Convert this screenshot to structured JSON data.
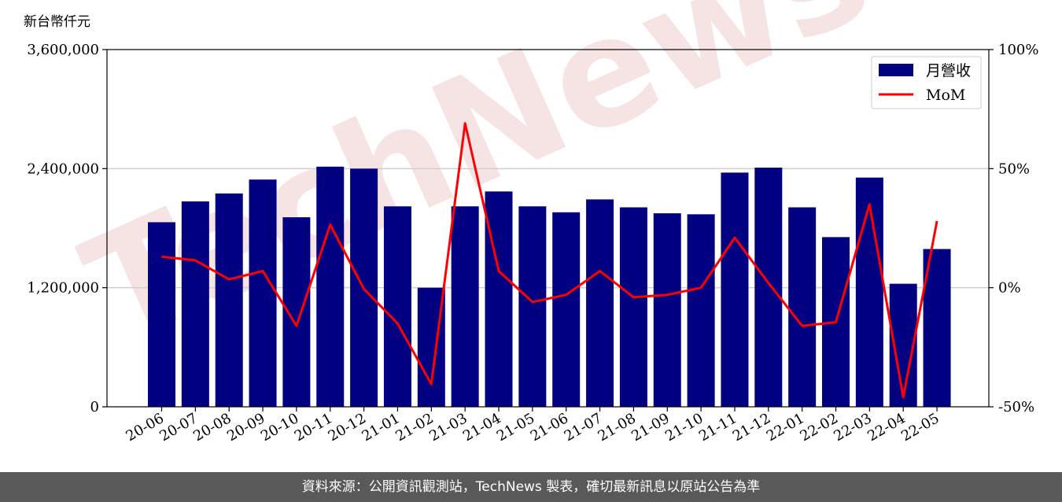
{
  "chart_data": {
    "type": "bar+line",
    "unit_label": "新台幣仟元",
    "categories": [
      "20-06",
      "20-07",
      "20-08",
      "20-09",
      "20-10",
      "20-11",
      "20-12",
      "21-01",
      "21-02",
      "21-03",
      "21-04",
      "21-05",
      "21-06",
      "21-07",
      "21-08",
      "21-09",
      "21-10",
      "21-11",
      "21-12",
      "22-01",
      "22-02",
      "22-03",
      "22-04",
      "22-05"
    ],
    "series": [
      {
        "name": "月營收",
        "type": "bar",
        "axis": "left",
        "color": "#000080",
        "values": [
          1860000,
          2070000,
          2150000,
          2290000,
          1910000,
          2420000,
          2400000,
          2020000,
          1200000,
          2020000,
          2170000,
          2020000,
          1960000,
          2090000,
          2010000,
          1950000,
          1940000,
          2360000,
          2410000,
          2010000,
          1710000,
          2310000,
          1240000,
          1590000
        ]
      },
      {
        "name": "MoM",
        "type": "line",
        "axis": "right",
        "color": "#ff0000",
        "values": [
          13,
          11.5,
          3.5,
          7,
          -16,
          26.5,
          -0.5,
          -15,
          -40.5,
          69,
          7,
          -6,
          -3,
          7,
          -4,
          -3,
          0,
          21,
          2,
          -16,
          -14.5,
          35,
          -46,
          28
        ]
      }
    ],
    "y_left": {
      "min": 0,
      "max": 3600000,
      "ticks": [
        0,
        1200000,
        2400000,
        3600000
      ],
      "tick_labels": [
        "0",
        "1,200,000",
        "2,400,000",
        "3,600,000"
      ]
    },
    "y_right": {
      "min": -50,
      "max": 100,
      "ticks": [
        -50,
        0,
        50,
        100
      ],
      "tick_labels": [
        "-50%",
        "0%",
        "50%",
        "100%"
      ]
    },
    "grid": "horizontal",
    "legend": "top-right"
  },
  "watermark": "TechNews",
  "footer": "資料來源：公開資訊觀測站，TechNews 製表，確切最新訊息以原站公告為準"
}
